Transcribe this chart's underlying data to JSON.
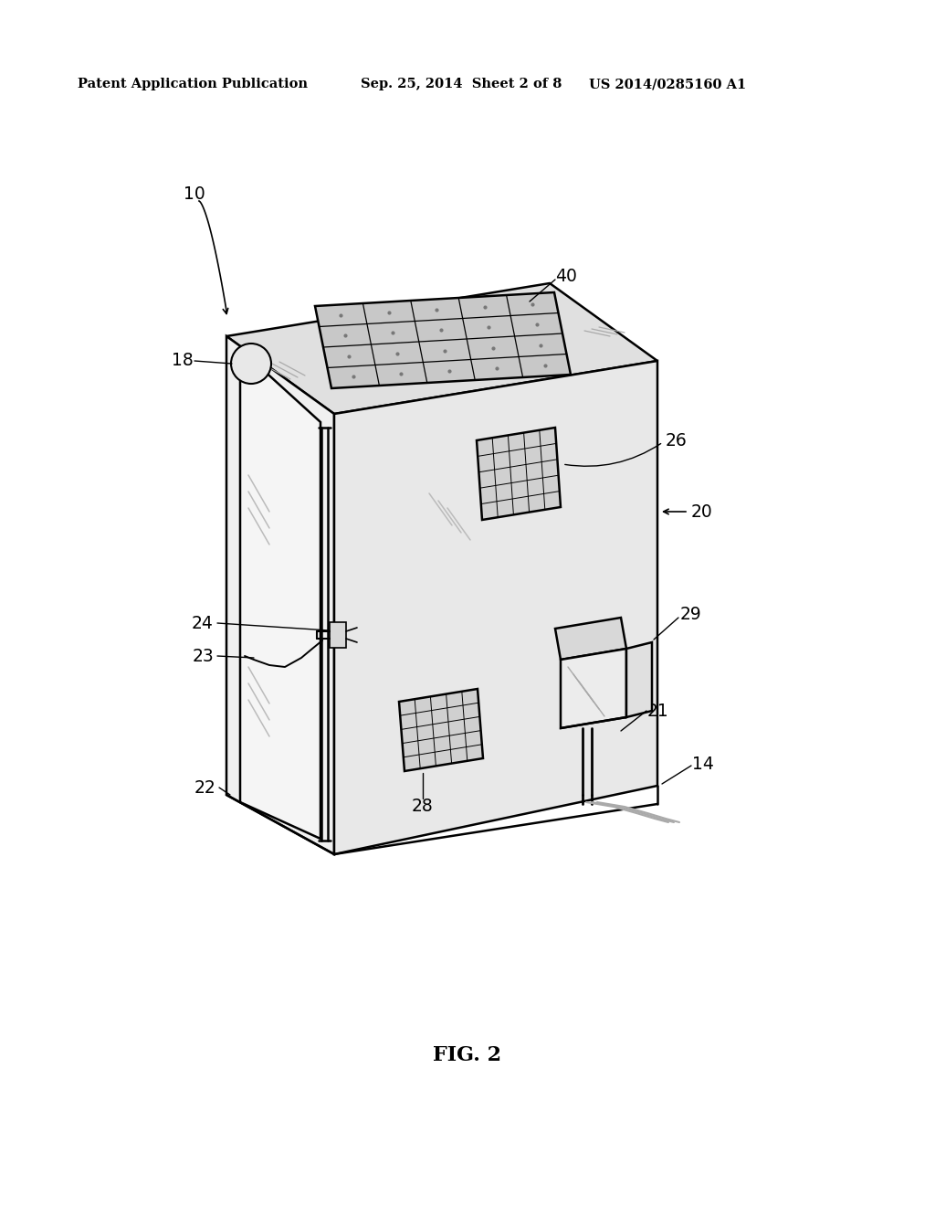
{
  "background_color": "#ffffff",
  "header_left": "Patent Application Publication",
  "header_center": "Sep. 25, 2014  Sheet 2 of 8",
  "header_right": "US 2014/0285160 A1",
  "figure_label": "FIG. 2",
  "line_color": "#000000",
  "face_top": "#e0e0e0",
  "face_front": "#f0f0f0",
  "face_right": "#e8e8e8",
  "panel_color": "#c8c8c8",
  "vent_color": "#d0d0d0",
  "ext_box_top": "#d8d8d8",
  "ext_box_front": "#ececec",
  "ext_box_right": "#e0e0e0"
}
